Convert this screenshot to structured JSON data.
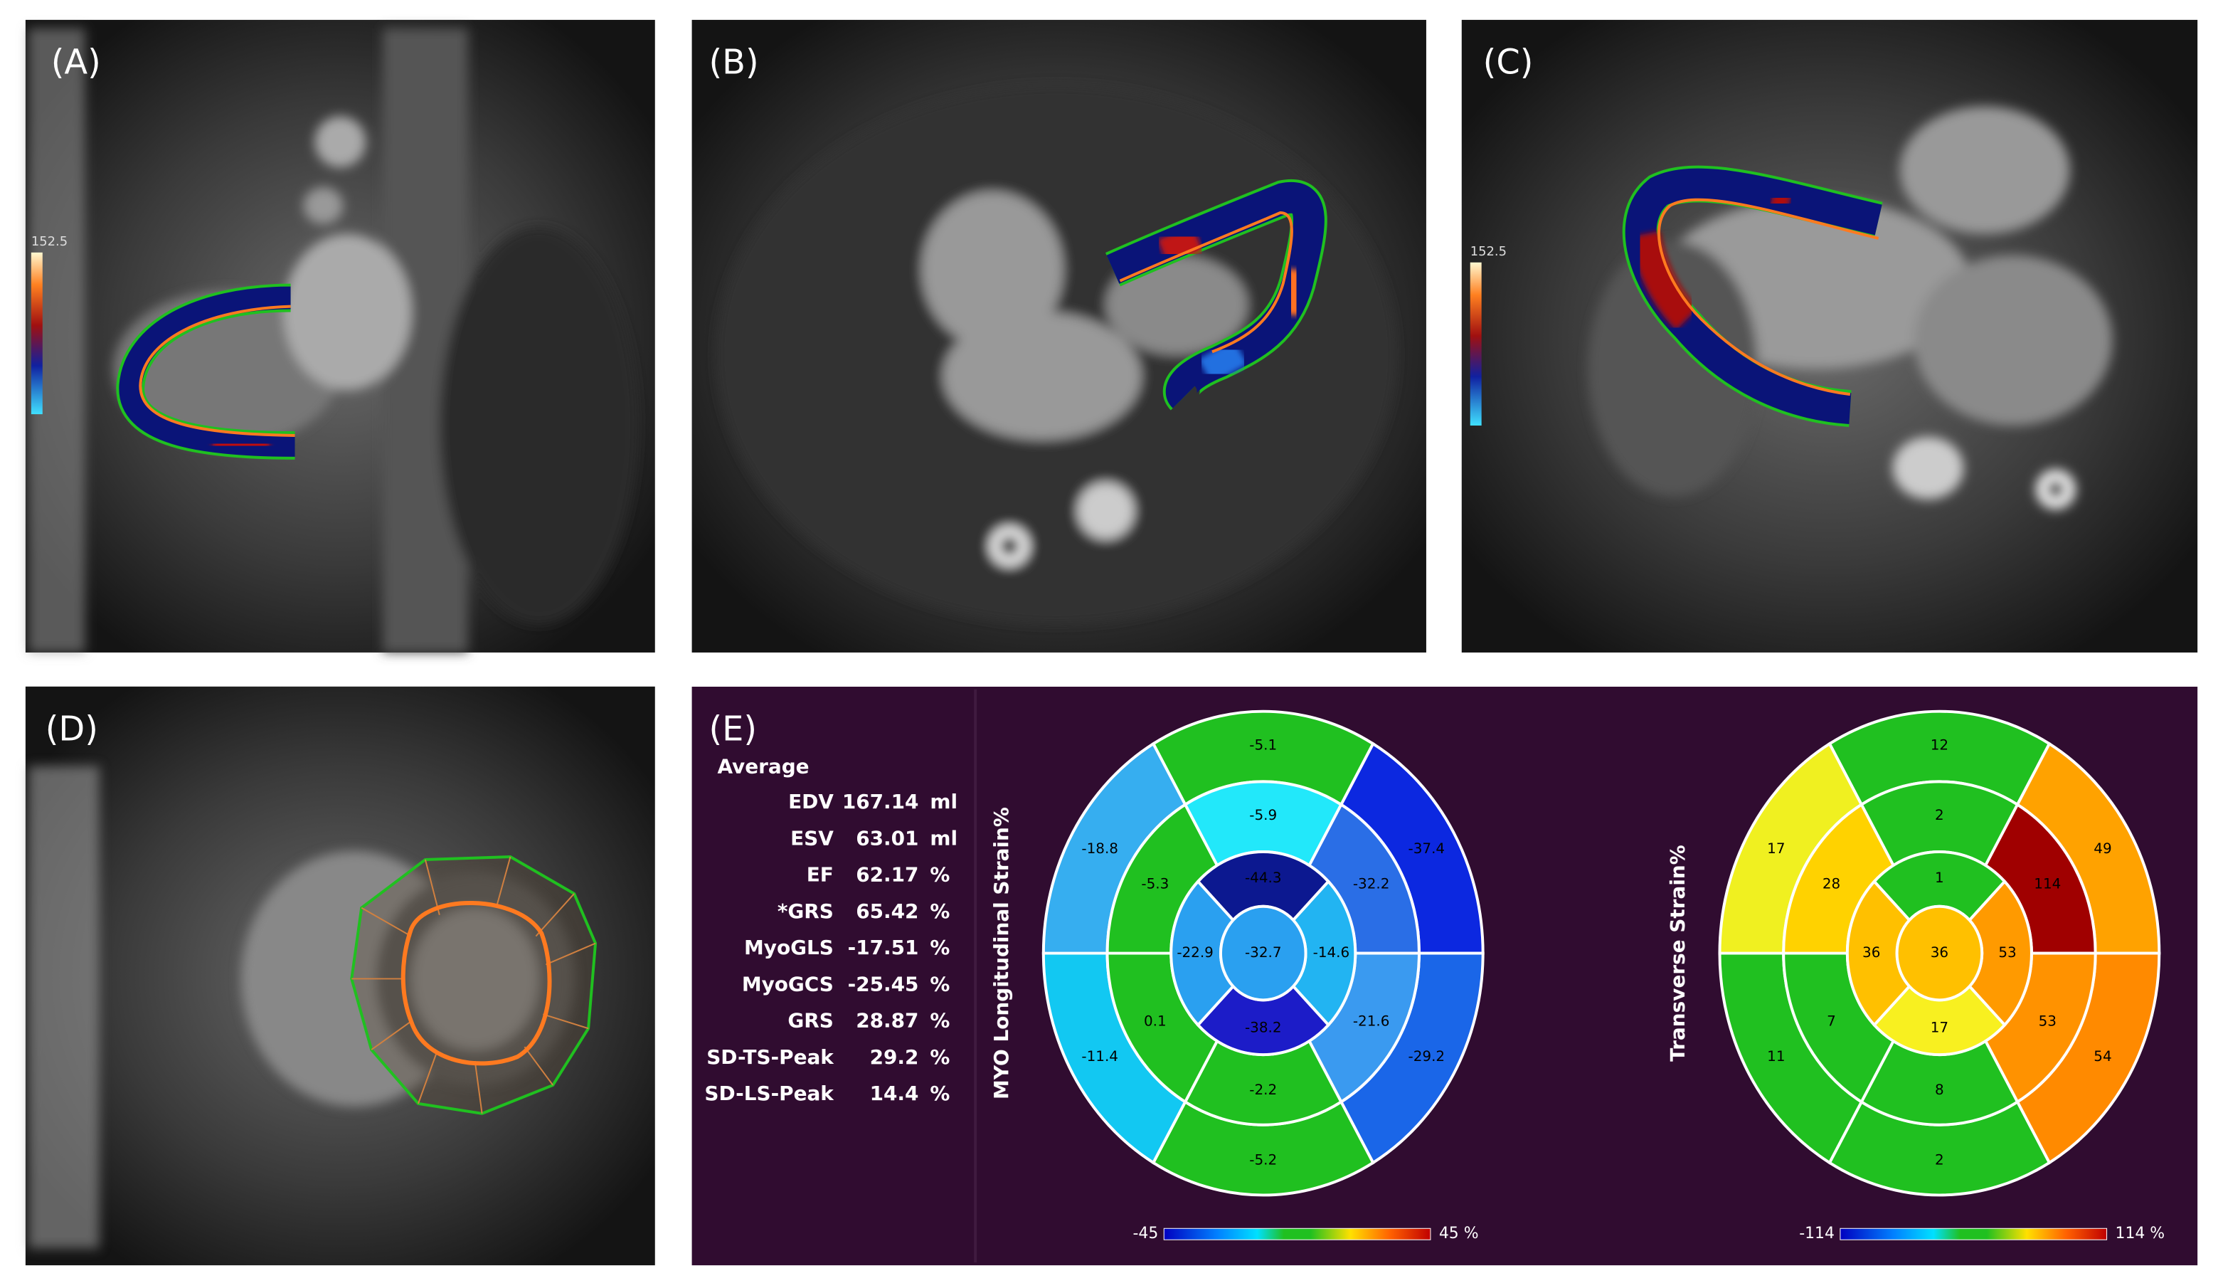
{
  "panels": {
    "a": {
      "label": "(A)",
      "scale": "152.5"
    },
    "b": {
      "label": "(B)"
    },
    "c": {
      "label": "(C)",
      "scale": "152.5"
    },
    "d": {
      "label": "(D)"
    },
    "e": {
      "label": "(E)",
      "heading": "Average",
      "rows": [
        [
          "EDV",
          "167.14",
          "ml"
        ],
        [
          "ESV",
          "63.01",
          "ml"
        ],
        [
          "EF",
          "62.17",
          "%"
        ],
        [
          "*GRS",
          "65.42",
          "%"
        ],
        [
          "MyoGLS",
          "-17.51",
          "%"
        ],
        [
          "MyoGCS",
          "-25.45",
          "%"
        ],
        [
          "GRS",
          "28.87",
          "%"
        ],
        [
          "SD-TS-Peak",
          "29.2",
          "%"
        ],
        [
          "SD-LS-Peak",
          "14.4",
          "%"
        ]
      ],
      "plots": [
        {
          "title": "MYO Longitudinal Strain%",
          "outer": [
            "-5.1",
            "-37.4",
            "-29.2",
            "-5.2",
            "-11.4",
            "-18.8"
          ],
          "middle": [
            "-5.9",
            "-32.2",
            "-21.6",
            "-2.2",
            "0.1",
            "-5.3"
          ],
          "inner": [
            "-44.3",
            "-14.6",
            "-38.2",
            "-22.9"
          ],
          "apex": "-32.7",
          "scale_min": "-45",
          "scale_max": "45 %"
        },
        {
          "title": "Transverse Strain%",
          "outer": [
            "12",
            "49",
            "54",
            "2",
            "11",
            "17"
          ],
          "middle": [
            "2",
            "114",
            "53",
            "8",
            "7",
            "28"
          ],
          "inner": [
            "1",
            "53",
            "17",
            "36"
          ],
          "apex": "36",
          "scale_min": "-114",
          "scale_max": "114 %"
        }
      ]
    }
  }
}
